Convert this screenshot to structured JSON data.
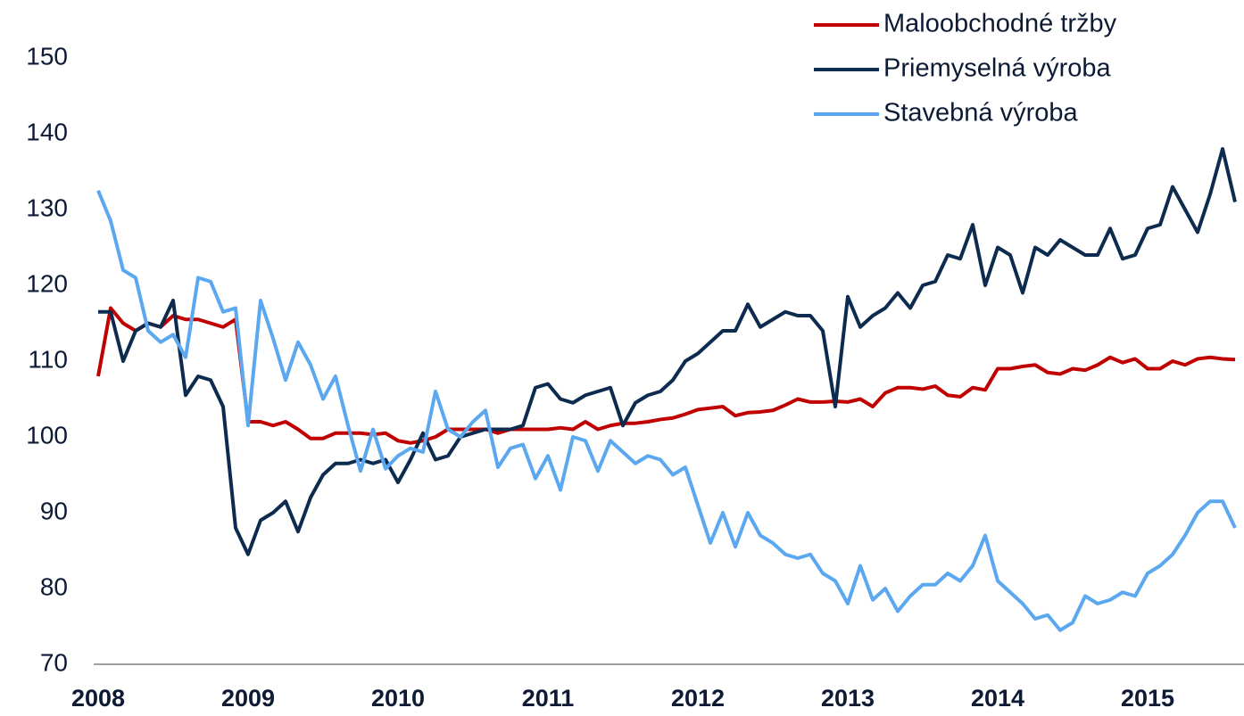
{
  "chart_data": {
    "type": "line",
    "categories": [
      "2008",
      null,
      null,
      null,
      null,
      null,
      null,
      null,
      null,
      null,
      null,
      null,
      "2009",
      null,
      null,
      null,
      null,
      null,
      null,
      null,
      null,
      null,
      null,
      null,
      "2010",
      null,
      null,
      null,
      null,
      null,
      null,
      null,
      null,
      null,
      null,
      null,
      "2011",
      null,
      null,
      null,
      null,
      null,
      null,
      null,
      null,
      null,
      null,
      null,
      "2012",
      null,
      null,
      null,
      null,
      null,
      null,
      null,
      null,
      null,
      null,
      null,
      "2013",
      null,
      null,
      null,
      null,
      null,
      null,
      null,
      null,
      null,
      null,
      null,
      "2014",
      null,
      null,
      null,
      null,
      null,
      null,
      null,
      null,
      null,
      null,
      null,
      "2015",
      null,
      null,
      null,
      null,
      null,
      null,
      null
    ],
    "series": [
      {
        "name": "Maloobchodné tržby",
        "color": "#c00000",
        "values": [
          108,
          117,
          115,
          114,
          115,
          114.5,
          116,
          115.5,
          115.5,
          115,
          114.5,
          115.5,
          102,
          102,
          101.5,
          102,
          101,
          99.8,
          99.8,
          100.5,
          100.5,
          100.5,
          100.3,
          100.5,
          99.5,
          99.2,
          99.5,
          100,
          101,
          101,
          101,
          101,
          100.5,
          101,
          101,
          101,
          101,
          101.2,
          101,
          102,
          101,
          101.5,
          101.8,
          101.8,
          102,
          102.3,
          102.5,
          103,
          103.6,
          103.8,
          104,
          102.8,
          103.2,
          103.3,
          103.5,
          104.2,
          105,
          104.6,
          104.6,
          104.7,
          104.6,
          105,
          104,
          105.8,
          106.5,
          106.5,
          106.3,
          106.7,
          105.5,
          105.3,
          106.5,
          106.2,
          109,
          109,
          109.3,
          109.5,
          108.5,
          108.3,
          109,
          108.8,
          109.5,
          110.5,
          109.8,
          110.3,
          109,
          109,
          110,
          109.5,
          110.3,
          110.5,
          110.3,
          110.2
        ]
      },
      {
        "name": "Priemyselná výroba",
        "color": "#0d2b4e",
        "values": [
          116.5,
          116.5,
          110,
          114,
          115,
          114.5,
          118,
          105.5,
          108,
          107.5,
          104,
          88,
          84.5,
          89,
          90,
          91.5,
          87.5,
          92,
          95,
          96.5,
          96.5,
          97,
          96.5,
          97,
          94,
          97,
          100.5,
          97,
          97.5,
          100,
          100.5,
          101,
          101,
          101,
          101.5,
          106.5,
          107,
          105,
          104.5,
          105.5,
          106,
          106.5,
          101.5,
          104.5,
          105.5,
          106,
          107.5,
          110,
          111,
          112.5,
          114,
          114,
          117.5,
          114.5,
          115.5,
          116.5,
          116,
          116,
          114,
          104,
          118.5,
          114.5,
          116,
          117,
          119,
          117,
          120,
          120.5,
          124,
          123.5,
          128,
          120,
          125,
          124,
          119,
          125,
          124,
          126,
          125,
          124,
          124,
          127.5,
          123.5,
          124,
          127.5,
          128,
          133,
          130,
          127,
          132,
          138,
          131
        ]
      },
      {
        "name": "Stavebná výroba",
        "color": "#5ba8f0",
        "values": [
          132.5,
          128.5,
          122,
          121,
          114,
          112.5,
          113.5,
          110.5,
          121,
          120.5,
          116.5,
          117,
          101.5,
          118,
          113,
          107.5,
          112.5,
          109.5,
          105,
          108,
          101.5,
          95.5,
          101,
          95.8,
          97.5,
          98.5,
          98,
          106,
          101,
          100,
          102,
          103.5,
          96,
          98.5,
          99,
          94.5,
          97.5,
          93,
          100,
          99.5,
          95.5,
          99.5,
          98,
          96.5,
          97.5,
          97,
          95,
          96,
          91,
          86,
          90,
          85.5,
          90,
          87,
          86,
          84.5,
          84,
          84.5,
          82,
          81,
          78,
          83,
          78.5,
          80,
          77,
          79,
          80.5,
          80.5,
          82,
          81,
          83,
          87,
          81,
          79.5,
          78,
          76,
          76.5,
          74.5,
          75.5,
          79,
          78,
          78.5,
          79.5,
          79,
          82,
          83,
          84.5,
          87,
          90,
          91.5,
          91.5,
          88
        ]
      }
    ],
    "ylim": [
      70,
      150
    ],
    "yticks": [
      70,
      80,
      90,
      100,
      110,
      120,
      130,
      140,
      150
    ],
    "grid": false,
    "legend": "top-right"
  }
}
